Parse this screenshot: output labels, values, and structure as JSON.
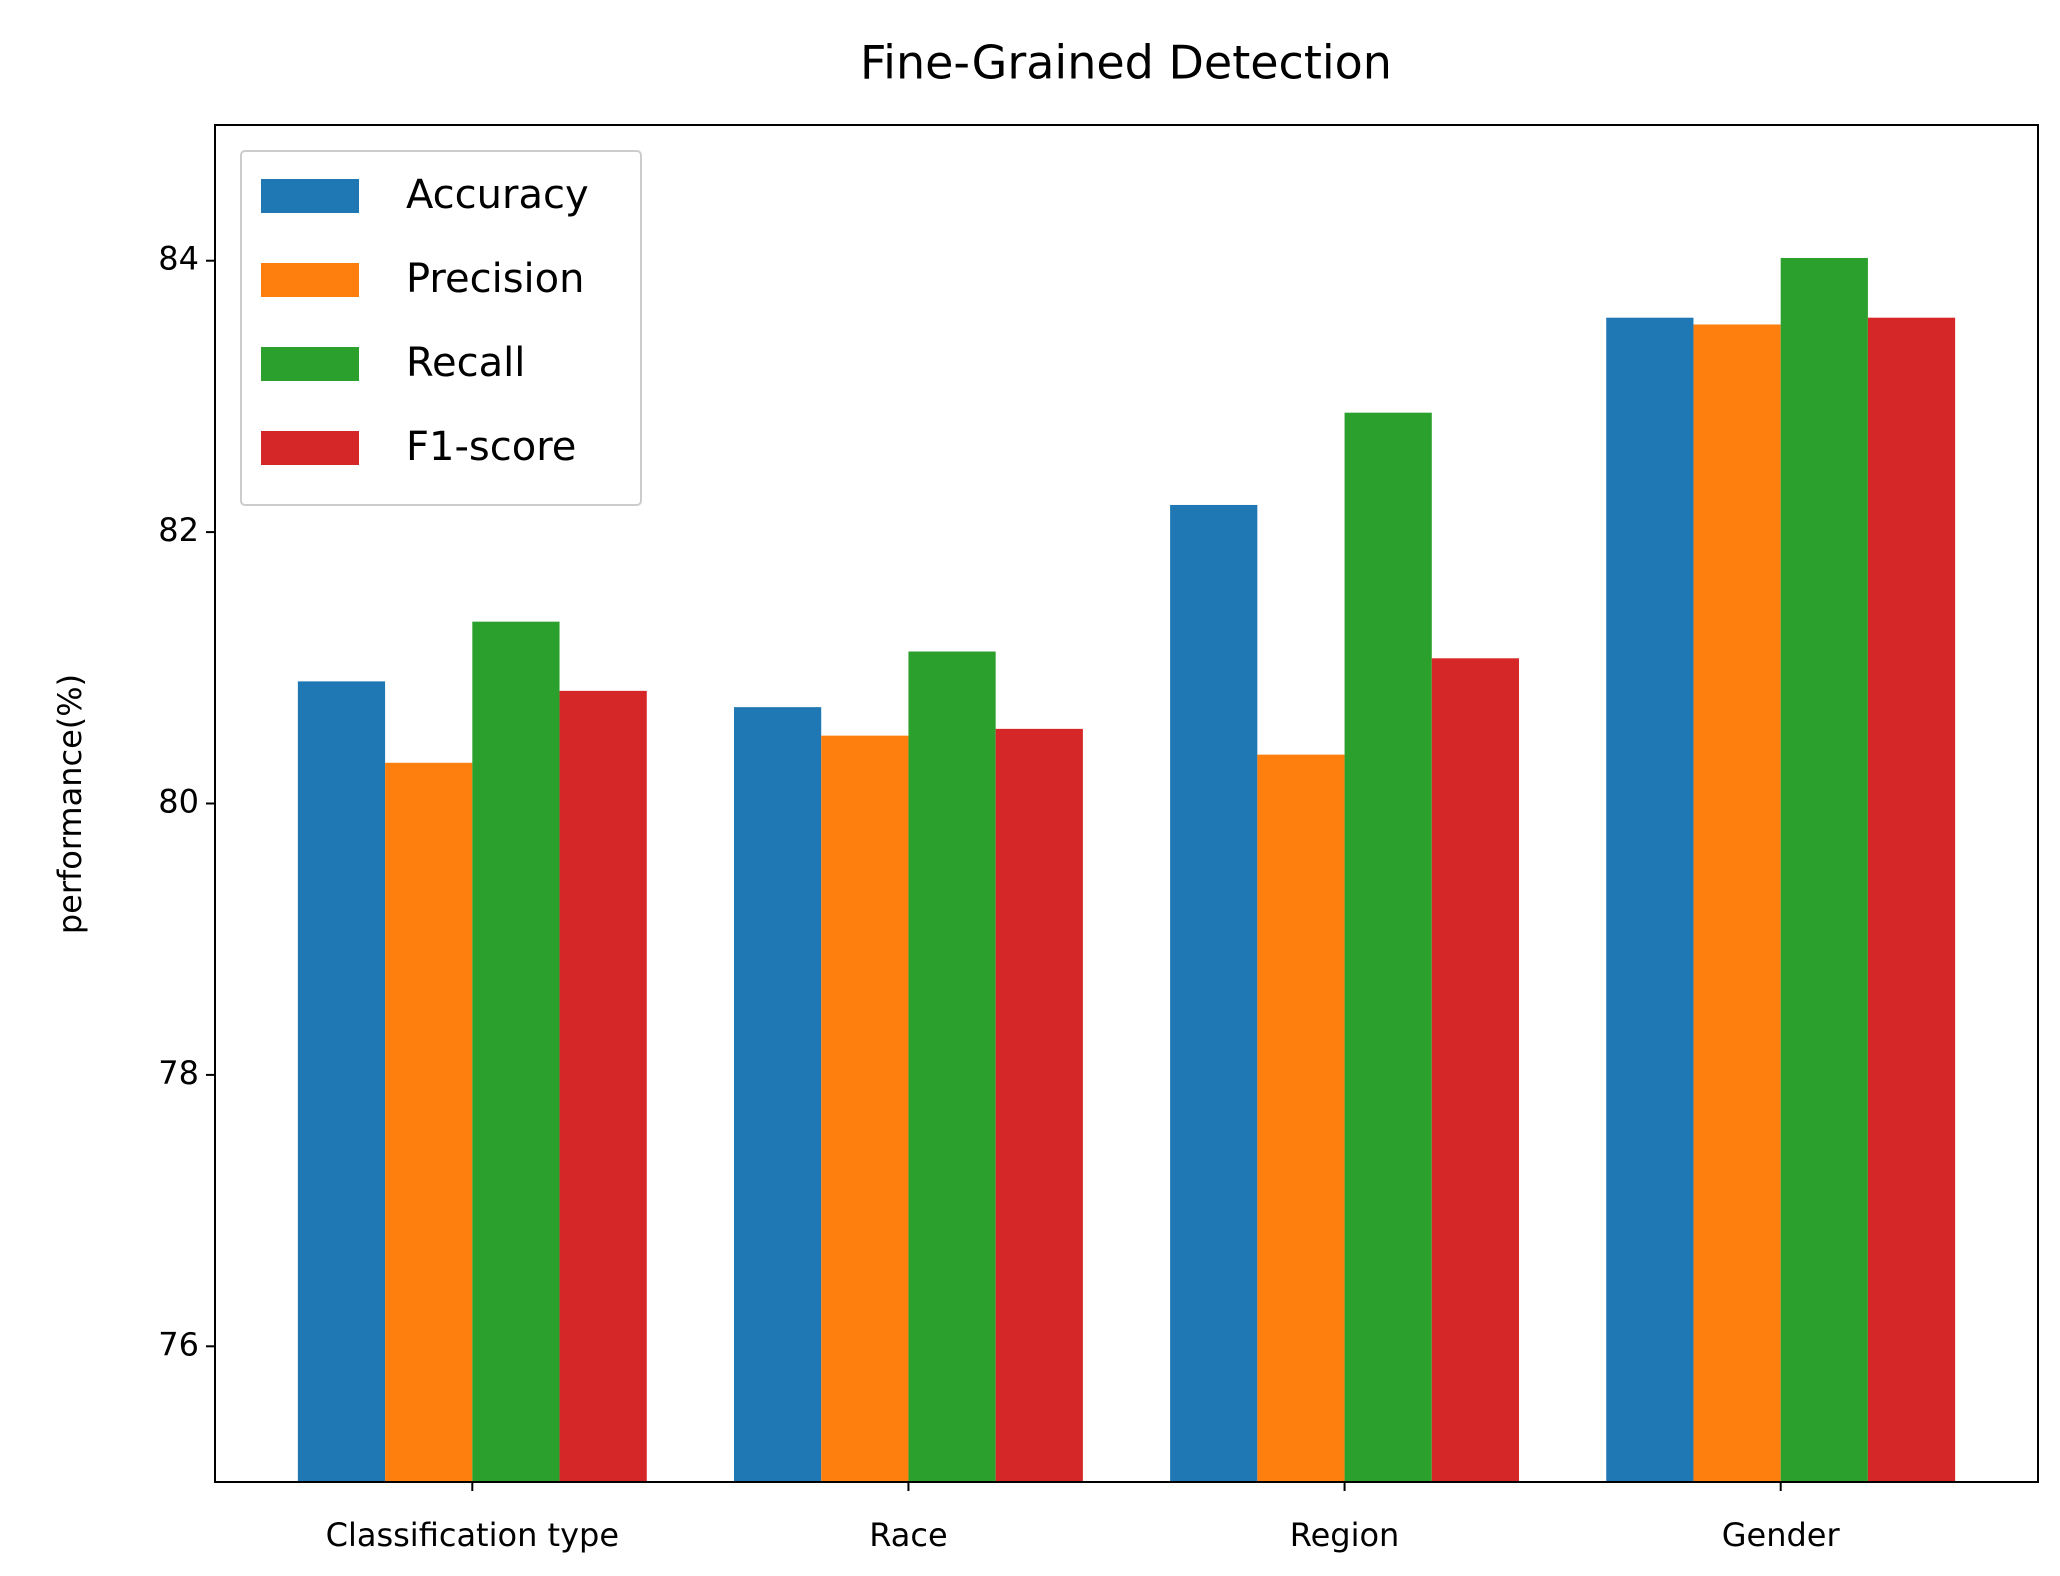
{
  "chart_data": {
    "type": "bar",
    "title": "Fine-Grained Detection",
    "y_label": "performance(%)",
    "categories": [
      "Classification type",
      "Race",
      "Region",
      "Gender"
    ],
    "series": [
      {
        "name": "Accuracy",
        "color": "#1f77b4",
        "values": [
          80.9,
          80.71,
          82.2,
          83.58
        ]
      },
      {
        "name": "Precision",
        "color": "#ff7f0e",
        "values": [
          80.3,
          80.5,
          80.36,
          83.53
        ]
      },
      {
        "name": "Recall",
        "color": "#2ca02c",
        "values": [
          81.34,
          81.12,
          82.88,
          84.02
        ]
      },
      {
        "name": "F1-score",
        "color": "#d62728",
        "values": [
          80.83,
          80.55,
          81.07,
          83.58
        ]
      }
    ],
    "ylim": [
      75,
      85
    ],
    "yticks": [
      76,
      78,
      80,
      82,
      84
    ],
    "grid": false,
    "legend": "upper left"
  }
}
